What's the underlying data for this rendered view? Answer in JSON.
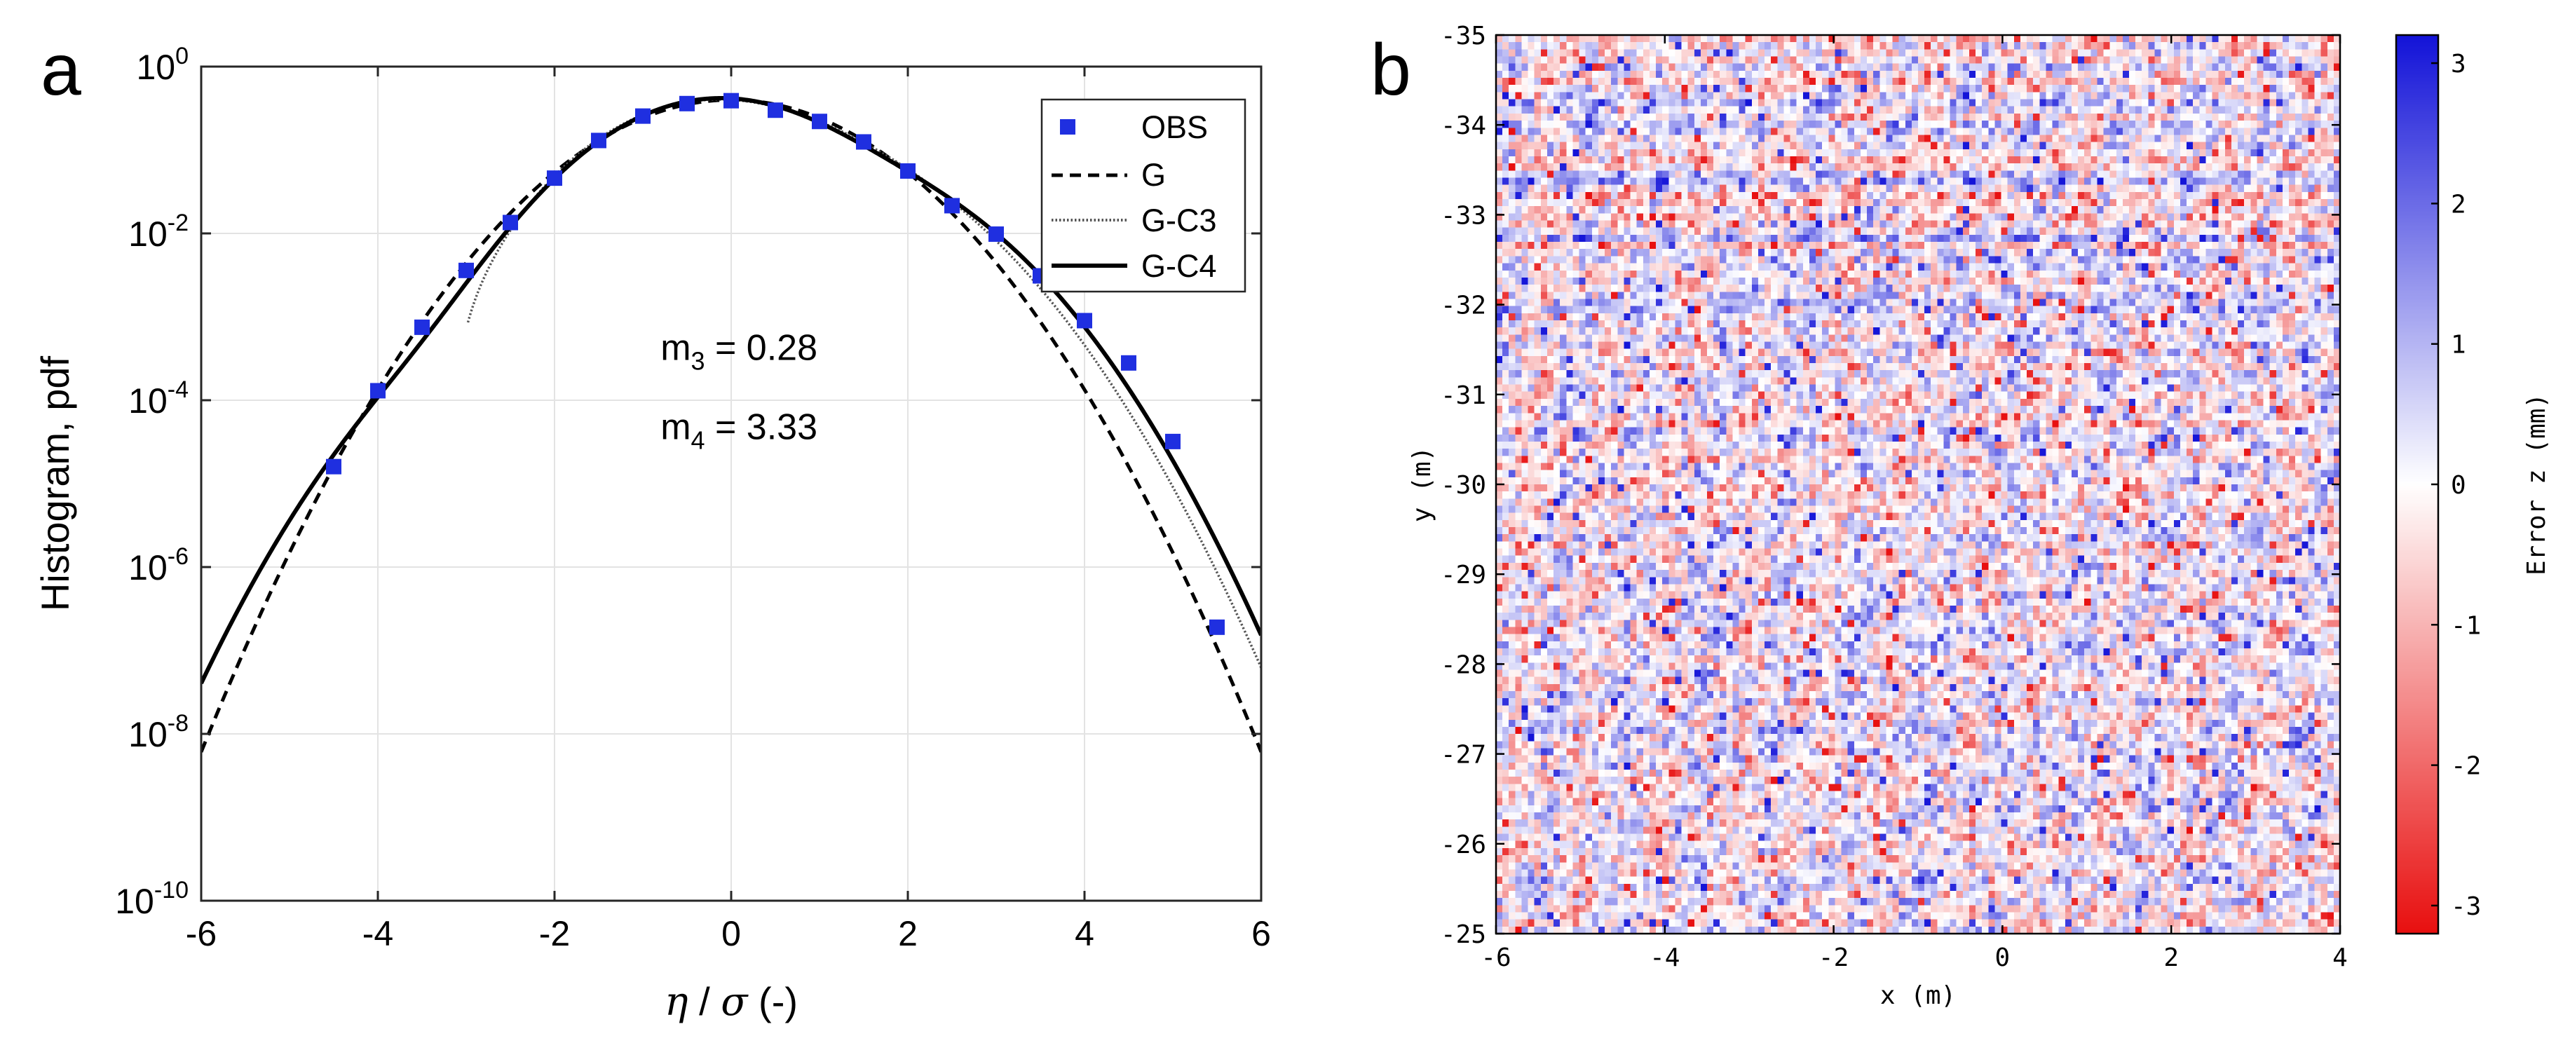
{
  "chart_data": [
    {
      "panel_label": "a",
      "type": "line",
      "yscale": "log",
      "xlabel_eta": "η",
      "xlabel_sep": " / ",
      "xlabel_sigma": "σ",
      "xlabel_unit": " (-)",
      "ylabel": "Histogram, pdf",
      "xlim": [
        -6,
        6
      ],
      "ylim_exp": [
        -10,
        0
      ],
      "xticks": [
        -6,
        -4,
        -2,
        0,
        2,
        4,
        6
      ],
      "xtick_labels": [
        "-6",
        "-4",
        "-2",
        "0",
        "2",
        "4",
        "6"
      ],
      "yticks_exp": [
        0,
        -2,
        -4,
        -6,
        -8,
        -10
      ],
      "ytick_base": "10",
      "ytick_exps": [
        "0",
        "-2",
        "-4",
        "-6",
        "-8",
        "-10"
      ],
      "grid": true,
      "legend_position": "top-right",
      "legend": [
        "OBS",
        "G",
        "G-C3",
        "G-C4"
      ],
      "series": [
        {
          "name": "OBS",
          "style": "square-marker",
          "color": "#1f2fe0",
          "x": [
            -4.5,
            -4.0,
            -3.5,
            -3.0,
            -2.5,
            -2.0,
            -1.5,
            -1.0,
            -0.5,
            0.0,
            0.5,
            1.0,
            1.5,
            2.0,
            2.5,
            3.0,
            3.5,
            4.0,
            4.5,
            5.0,
            5.5
          ],
          "y": [
            1.6e-05,
            0.00013,
            0.00075,
            0.0036,
            0.0135,
            0.046,
            0.13,
            0.255,
            0.36,
            0.39,
            0.3,
            0.22,
            0.125,
            0.056,
            0.0215,
            0.0098,
            0.0031,
            0.0009,
            0.00028,
            3.2e-05,
            1.9e-07
          ]
        },
        {
          "name": "G",
          "style": "dashed",
          "color": "#000000",
          "m3": 0,
          "m4": 3
        },
        {
          "name": "G-C3",
          "style": "dotted",
          "color": "#555555",
          "m3": 0.28,
          "m4": 3,
          "x_start": -2.98
        },
        {
          "name": "G-C4",
          "style": "solid",
          "color": "#000000",
          "m3": 0.28,
          "m4": 3.33
        }
      ],
      "annotations": [
        {
          "prefix": "m",
          "sub": "3",
          "suffix": " = 0.28",
          "x": -0.8,
          "y_exp": -3.35
        },
        {
          "prefix": "m",
          "sub": "4",
          "suffix": " = 3.33",
          "x": -0.8,
          "y_exp": -4.3
        }
      ]
    },
    {
      "panel_label": "b",
      "type": "heatmap",
      "xlabel": "x (m)",
      "ylabel": "y (m)",
      "xlim": [
        -6,
        4
      ],
      "ylim": [
        -25,
        -35
      ],
      "xticks": [
        -6,
        -4,
        -2,
        0,
        2,
        4
      ],
      "xtick_labels": [
        "-6",
        "-4",
        "-2",
        "0",
        "2",
        "4"
      ],
      "yticks": [
        -35,
        -34,
        -33,
        -32,
        -31,
        -30,
        -29,
        -28,
        -27,
        -26,
        -25
      ],
      "ytick_labels": [
        "-35",
        "-34",
        "-33",
        "-32",
        "-31",
        "-30",
        "-29",
        "-28",
        "-27",
        "-26",
        "-25"
      ],
      "grid_cols": 132,
      "grid_rows": 126,
      "seed": 20240607,
      "colorbar": {
        "label": "Error z (mm)",
        "range": [
          -3.2,
          3.2
        ],
        "ticks": [
          3,
          2,
          1,
          0,
          -1,
          -2,
          -3
        ],
        "tick_labels": [
          "3",
          "2",
          "1",
          "0",
          "-1",
          "-2",
          "-3"
        ],
        "colors": [
          "#e81010",
          "#ffffff",
          "#1414d8"
        ]
      }
    }
  ]
}
